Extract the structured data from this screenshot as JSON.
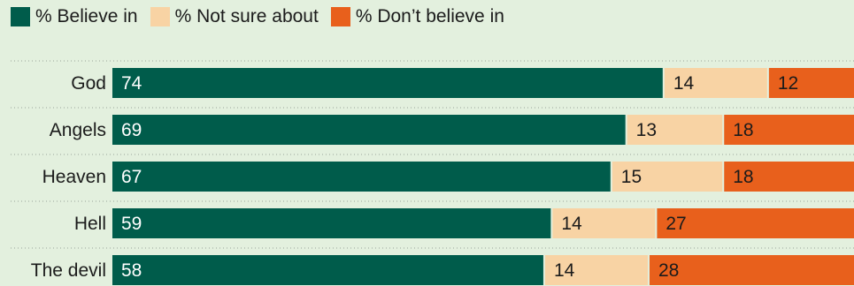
{
  "legend": {
    "items": [
      {
        "label": "% Believe in",
        "color": "#005c4b"
      },
      {
        "label": "% Not sure about",
        "color": "#f8d3a4"
      },
      {
        "label": "% Don’t believe in",
        "color": "#e8601c"
      }
    ]
  },
  "colors": {
    "background": "#e3f0de",
    "believe": "#005c4b",
    "not_sure": "#f8d3a4",
    "dont_believe": "#e8601c",
    "label_light": "#ffffff",
    "label_dark": "#1b1b1b",
    "separator": "#9aa59a"
  },
  "chart_data": {
    "type": "bar",
    "orientation": "horizontal",
    "stacked": true,
    "categories": [
      "God",
      "Angels",
      "Heaven",
      "Hell",
      "The devil"
    ],
    "series": [
      {
        "name": "% Believe in",
        "values": [
          74,
          69,
          67,
          59,
          58
        ]
      },
      {
        "name": "% Not sure about",
        "values": [
          14,
          13,
          15,
          14,
          14
        ]
      },
      {
        "name": "% Don’t believe in",
        "values": [
          12,
          18,
          18,
          27,
          28
        ]
      }
    ],
    "xlim": [
      0,
      100
    ],
    "legend_position": "top-left",
    "grid": false
  }
}
